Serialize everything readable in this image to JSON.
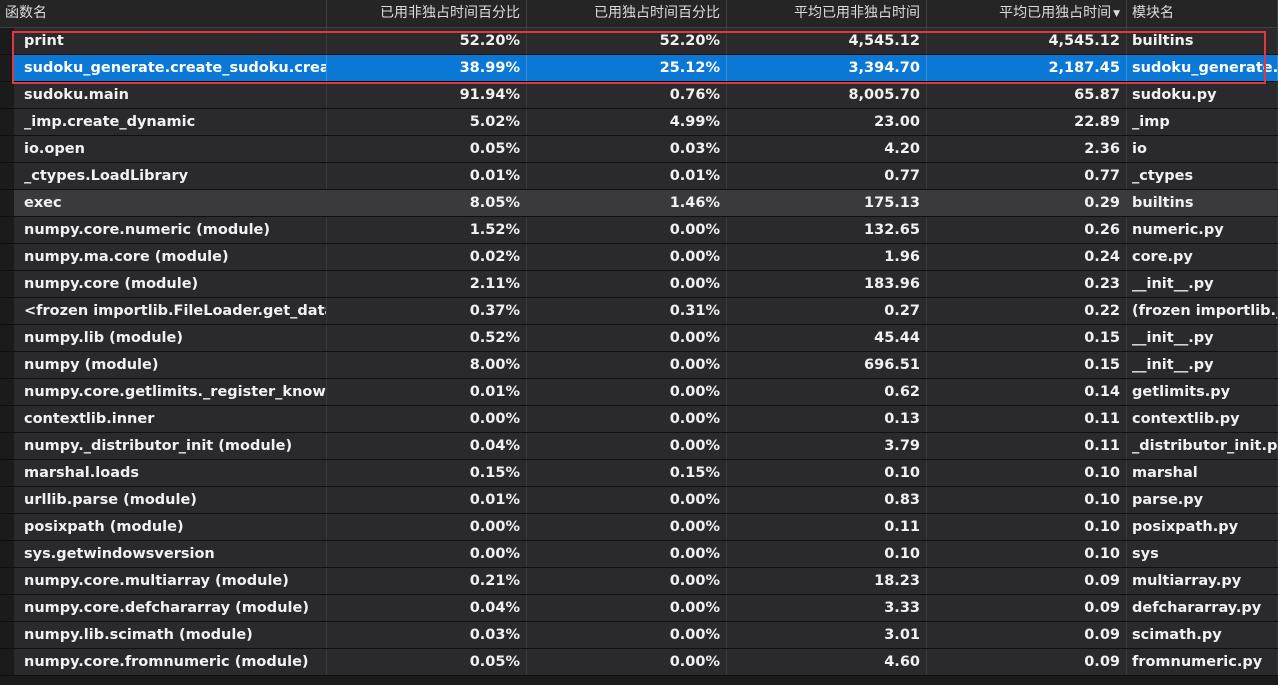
{
  "headers": {
    "function_name": "函数名",
    "inclusive_pct": "已用非独占时间百分比",
    "exclusive_pct": "已用独占时间百分比",
    "avg_inclusive": "平均已用非独占时间",
    "avg_exclusive": "平均已用独占时间",
    "module_name": "模块名"
  },
  "rows": [
    {
      "name": "print",
      "inc_pct": "52.20%",
      "exc_pct": "52.20%",
      "avg_inc": "4,545.12",
      "avg_exc": "4,545.12",
      "module": "builtins"
    },
    {
      "name": "sudoku_generate.create_sudoku.create",
      "inc_pct": "38.99%",
      "exc_pct": "25.12%",
      "avg_inc": "3,394.70",
      "avg_exc": "2,187.45",
      "module": "sudoku_generate.p"
    },
    {
      "name": "sudoku.main",
      "inc_pct": "91.94%",
      "exc_pct": "0.76%",
      "avg_inc": "8,005.70",
      "avg_exc": "65.87",
      "module": "sudoku.py"
    },
    {
      "name": "_imp.create_dynamic",
      "inc_pct": "5.02%",
      "exc_pct": "4.99%",
      "avg_inc": "23.00",
      "avg_exc": "22.89",
      "module": "_imp"
    },
    {
      "name": "io.open",
      "inc_pct": "0.05%",
      "exc_pct": "0.03%",
      "avg_inc": "4.20",
      "avg_exc": "2.36",
      "module": "io"
    },
    {
      "name": "_ctypes.LoadLibrary",
      "inc_pct": "0.01%",
      "exc_pct": "0.01%",
      "avg_inc": "0.77",
      "avg_exc": "0.77",
      "module": "_ctypes"
    },
    {
      "name": "exec",
      "inc_pct": "8.05%",
      "exc_pct": "1.46%",
      "avg_inc": "175.13",
      "avg_exc": "0.29",
      "module": "builtins"
    },
    {
      "name": "numpy.core.numeric (module)",
      "inc_pct": "1.52%",
      "exc_pct": "0.00%",
      "avg_inc": "132.65",
      "avg_exc": "0.26",
      "module": "numeric.py"
    },
    {
      "name": "numpy.ma.core (module)",
      "inc_pct": "0.02%",
      "exc_pct": "0.00%",
      "avg_inc": "1.96",
      "avg_exc": "0.24",
      "module": "core.py"
    },
    {
      "name": "numpy.core (module)",
      "inc_pct": "2.11%",
      "exc_pct": "0.00%",
      "avg_inc": "183.96",
      "avg_exc": "0.23",
      "module": "__init__.py"
    },
    {
      "name": "<frozen importlib.FileLoader.get_data",
      "inc_pct": "0.37%",
      "exc_pct": "0.31%",
      "avg_inc": "0.27",
      "avg_exc": "0.22",
      "module": "(frozen importlib._"
    },
    {
      "name": "numpy.lib (module)",
      "inc_pct": "0.52%",
      "exc_pct": "0.00%",
      "avg_inc": "45.44",
      "avg_exc": "0.15",
      "module": "__init__.py"
    },
    {
      "name": "numpy (module)",
      "inc_pct": "8.00%",
      "exc_pct": "0.00%",
      "avg_inc": "696.51",
      "avg_exc": "0.15",
      "module": "__init__.py"
    },
    {
      "name": "numpy.core.getlimits._register_know…",
      "inc_pct": "0.01%",
      "exc_pct": "0.00%",
      "avg_inc": "0.62",
      "avg_exc": "0.14",
      "module": "getlimits.py"
    },
    {
      "name": "contextlib.inner",
      "inc_pct": "0.00%",
      "exc_pct": "0.00%",
      "avg_inc": "0.13",
      "avg_exc": "0.11",
      "module": "contextlib.py"
    },
    {
      "name": "numpy._distributor_init (module)",
      "inc_pct": "0.04%",
      "exc_pct": "0.00%",
      "avg_inc": "3.79",
      "avg_exc": "0.11",
      "module": "_distributor_init.py"
    },
    {
      "name": "marshal.loads",
      "inc_pct": "0.15%",
      "exc_pct": "0.15%",
      "avg_inc": "0.10",
      "avg_exc": "0.10",
      "module": "marshal"
    },
    {
      "name": "urllib.parse (module)",
      "inc_pct": "0.01%",
      "exc_pct": "0.00%",
      "avg_inc": "0.83",
      "avg_exc": "0.10",
      "module": "parse.py"
    },
    {
      "name": "posixpath (module)",
      "inc_pct": "0.00%",
      "exc_pct": "0.00%",
      "avg_inc": "0.11",
      "avg_exc": "0.10",
      "module": "posixpath.py"
    },
    {
      "name": "sys.getwindowsversion",
      "inc_pct": "0.00%",
      "exc_pct": "0.00%",
      "avg_inc": "0.10",
      "avg_exc": "0.10",
      "module": "sys"
    },
    {
      "name": "numpy.core.multiarray (module)",
      "inc_pct": "0.21%",
      "exc_pct": "0.00%",
      "avg_inc": "18.23",
      "avg_exc": "0.09",
      "module": "multiarray.py"
    },
    {
      "name": "numpy.core.defchararray (module)",
      "inc_pct": "0.04%",
      "exc_pct": "0.00%",
      "avg_inc": "3.33",
      "avg_exc": "0.09",
      "module": "defchararray.py"
    },
    {
      "name": "numpy.lib.scimath (module)",
      "inc_pct": "0.03%",
      "exc_pct": "0.00%",
      "avg_inc": "3.01",
      "avg_exc": "0.09",
      "module": "scimath.py"
    },
    {
      "name": "numpy.core.fromnumeric (module)",
      "inc_pct": "0.05%",
      "exc_pct": "0.00%",
      "avg_inc": "4.60",
      "avg_exc": "0.09",
      "module": "fromnumeric.py"
    }
  ],
  "selected_row_index": 1,
  "hover_row_index": 6,
  "sort_column": "avg_exclusive",
  "sort_icon": "sort-descending-icon",
  "colors": {
    "background": "#1b1b1c",
    "row_bg": "#2a2a2c",
    "selection": "#0a78d4",
    "annotation_box": "#e0383e"
  }
}
